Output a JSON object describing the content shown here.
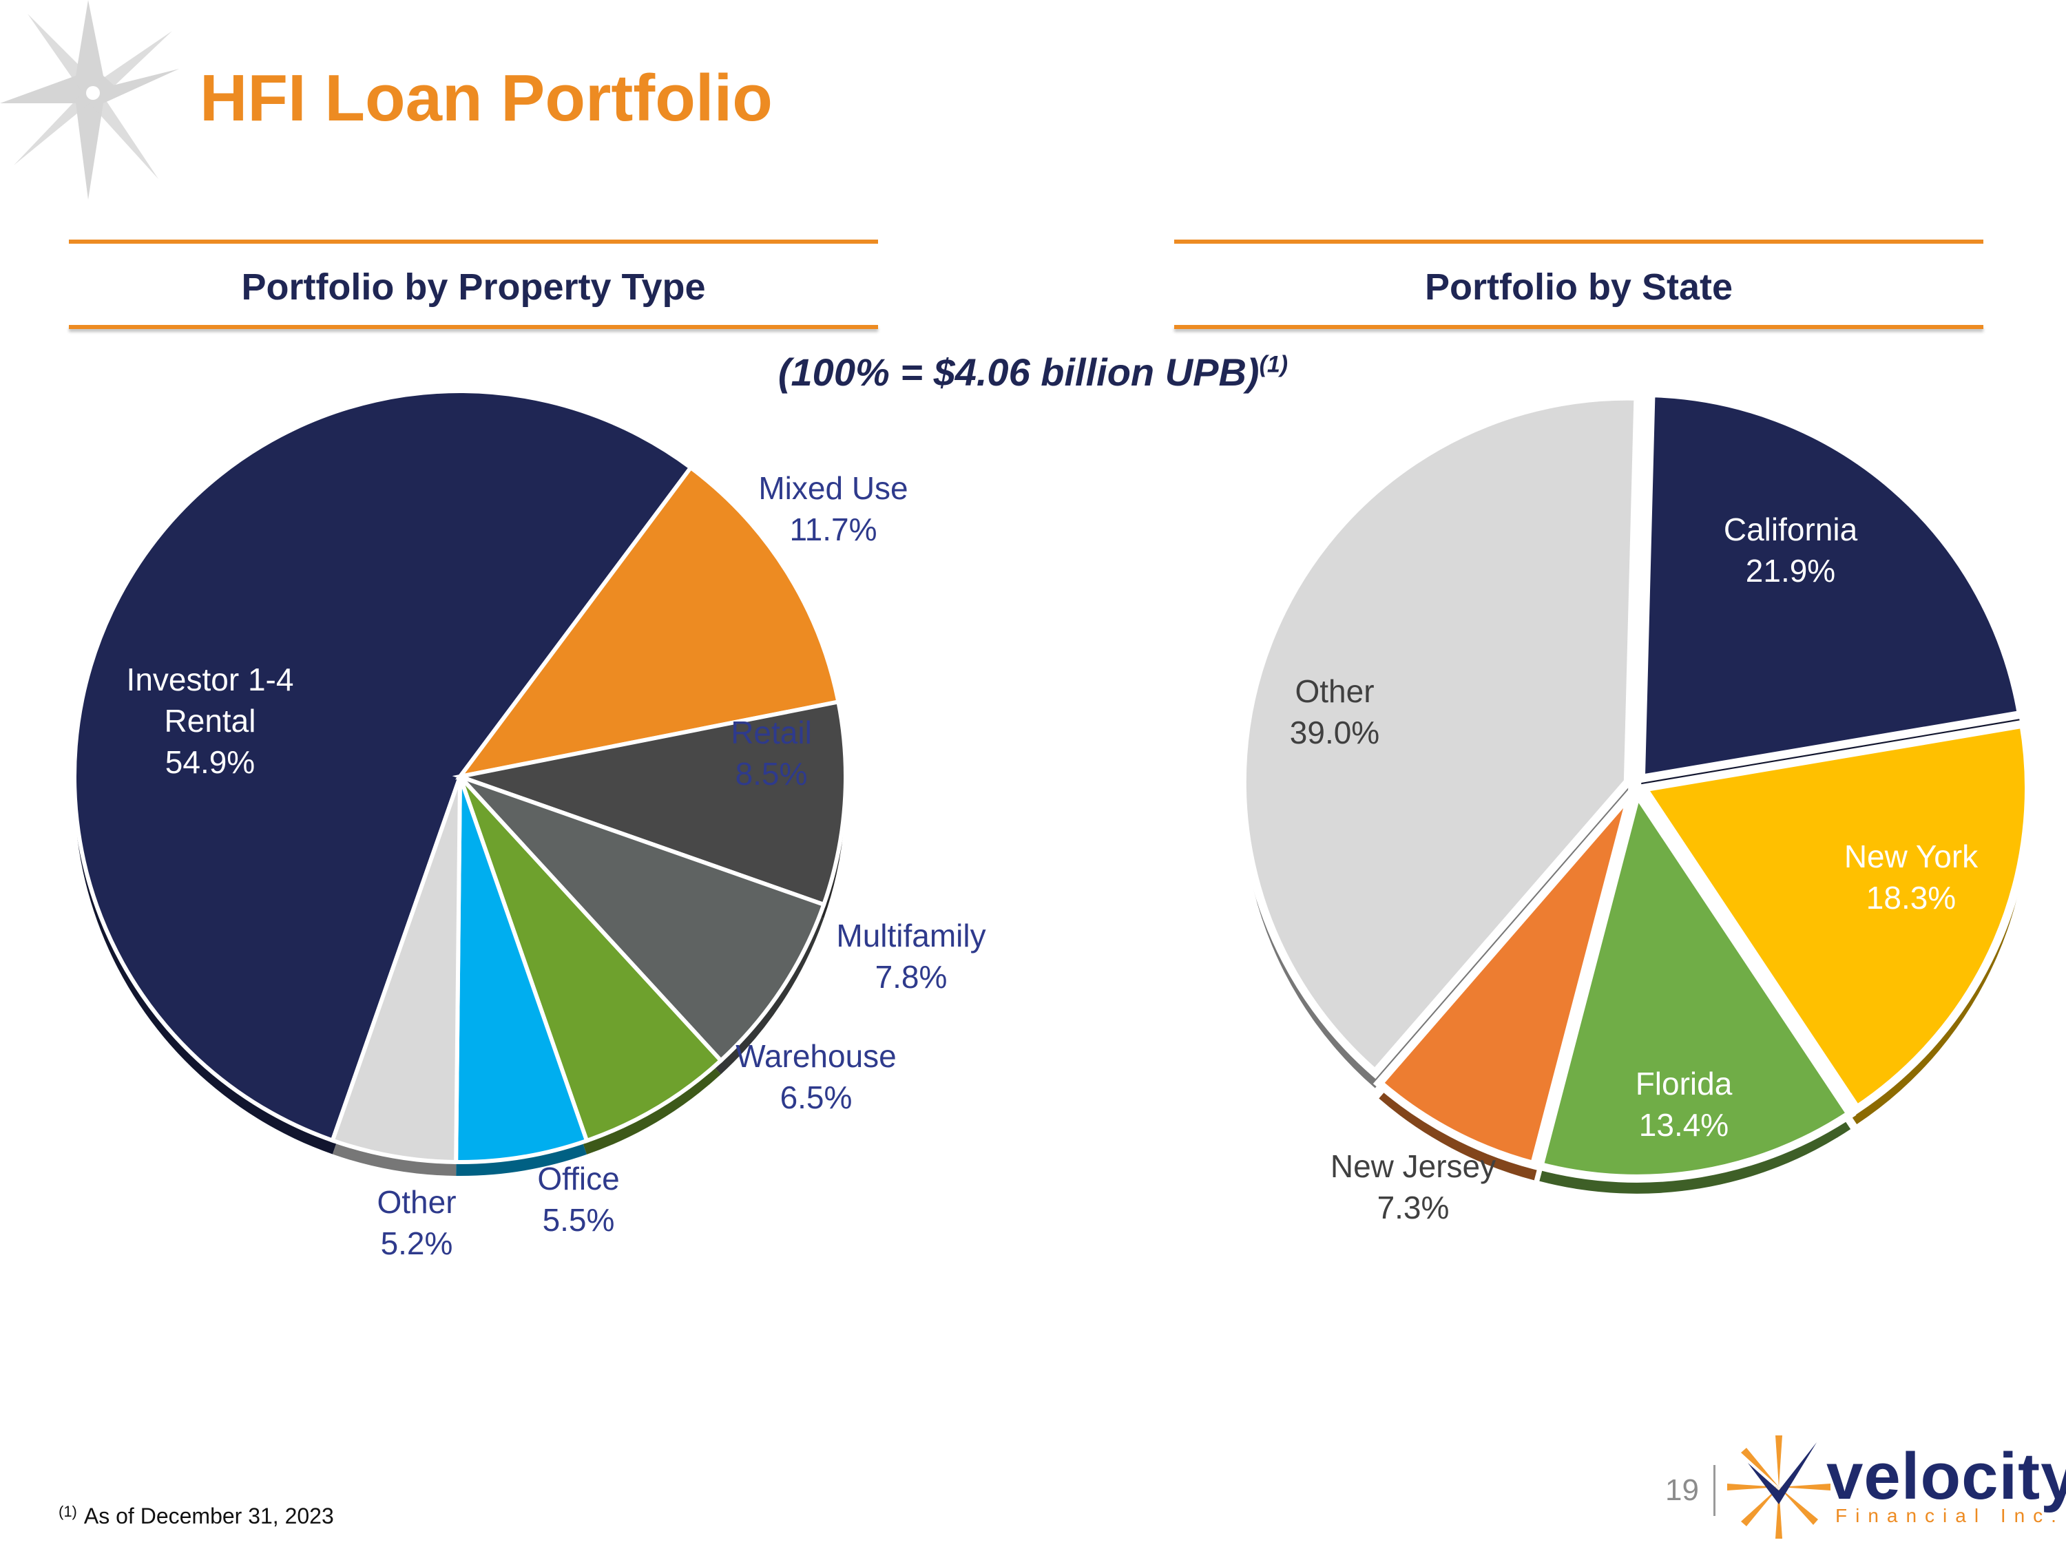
{
  "title": "HFI Loan Portfolio",
  "subtitle": "(100% = $4.06 billion UPB)",
  "subtitle_note": "(1)",
  "footnote": {
    "mark": "(1)",
    "text": "As of December 31, 2023"
  },
  "page_number": "19",
  "logo": {
    "name": "velocity",
    "tagline": "Financial Inc."
  },
  "colors": {
    "accent": "#ED8B22",
    "navy": "#1F2654",
    "label_blue": "#2E3A8C"
  },
  "chart_data": [
    {
      "type": "pie",
      "title": "Portfolio by Property Type",
      "unit": "%",
      "slices": [
        {
          "label": "Investor 1-4 Rental",
          "label_lines": [
            "Investor 1-4",
            "Rental"
          ],
          "value": 54.9,
          "display": "54.9%",
          "color": "#1F2654",
          "label_color": "#FFFFFF",
          "label_position": "inside"
        },
        {
          "label": "Mixed Use",
          "label_lines": [
            "Mixed Use"
          ],
          "value": 11.7,
          "display": "11.7%",
          "color": "#ED8B22",
          "label_color": "#2E3A8C",
          "label_position": "outside"
        },
        {
          "label": "Retail",
          "label_lines": [
            "Retail"
          ],
          "value": 8.5,
          "display": "8.5%",
          "color": "#484848",
          "label_color": "#2E3A8C",
          "label_position": "inside"
        },
        {
          "label": "Multifamily",
          "label_lines": [
            "Multifamily"
          ],
          "value": 7.8,
          "display": "7.8%",
          "color": "#5F6362",
          "label_color": "#2E3A8C",
          "label_position": "outside"
        },
        {
          "label": "Warehouse",
          "label_lines": [
            "Warehouse"
          ],
          "value": 6.5,
          "display": "6.5%",
          "color": "#6EA12D",
          "label_color": "#2E3A8C",
          "label_position": "outside"
        },
        {
          "label": "Office",
          "label_lines": [
            "Office"
          ],
          "value": 5.5,
          "display": "5.5%",
          "color": "#00AEEF",
          "label_color": "#2E3A8C",
          "label_position": "outside"
        },
        {
          "label": "Other",
          "label_lines": [
            "Other"
          ],
          "value": 5.2,
          "display": "5.2%",
          "color": "#D9D9D9",
          "label_color": "#2E3A8C",
          "label_position": "outside"
        }
      ]
    },
    {
      "type": "pie",
      "title": "Portfolio by State",
      "unit": "%",
      "slices": [
        {
          "label": "California",
          "label_lines": [
            "California"
          ],
          "value": 21.9,
          "display": "21.9%",
          "color": "#1F2654",
          "label_color": "#FFFFFF",
          "label_position": "inside"
        },
        {
          "label": "New York",
          "label_lines": [
            "New York"
          ],
          "value": 18.3,
          "display": "18.3%",
          "color": "#FFC000",
          "label_color": "#FFFFFF",
          "label_position": "inside"
        },
        {
          "label": "Florida",
          "label_lines": [
            "Florida"
          ],
          "value": 13.4,
          "display": "13.4%",
          "color": "#70AD47",
          "label_color": "#FFFFFF",
          "label_position": "inside"
        },
        {
          "label": "New Jersey",
          "label_lines": [
            "New Jersey"
          ],
          "value": 7.3,
          "display": "7.3%",
          "color": "#ED7D31",
          "label_color": "#404040",
          "label_position": "outside"
        },
        {
          "label": "Other",
          "label_lines": [
            "Other"
          ],
          "value": 39.0,
          "display": "39.0%",
          "color": "#D9D9D9",
          "label_color": "#404040",
          "label_position": "inside"
        }
      ]
    }
  ]
}
